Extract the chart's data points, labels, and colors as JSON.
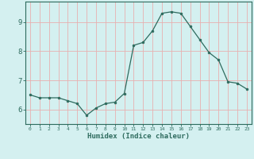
{
  "x": [
    0,
    1,
    2,
    3,
    4,
    5,
    6,
    7,
    8,
    9,
    10,
    11,
    12,
    13,
    14,
    15,
    16,
    17,
    18,
    19,
    20,
    21,
    22,
    23
  ],
  "y": [
    6.5,
    6.4,
    6.4,
    6.4,
    6.3,
    6.2,
    5.8,
    6.05,
    6.2,
    6.25,
    6.55,
    8.2,
    8.3,
    8.7,
    9.3,
    9.35,
    9.3,
    8.85,
    8.4,
    7.95,
    7.7,
    6.95,
    6.9,
    6.7
  ],
  "xlabel": "Humidex (Indice chaleur)",
  "line_color": "#2e6b5e",
  "marker": "o",
  "marker_size": 2,
  "bg_color": "#d4f0f0",
  "grid_color": "#e8b0b0",
  "ylim": [
    5.5,
    9.7
  ],
  "xlim": [
    -0.5,
    23.5
  ],
  "yticks": [
    6,
    7,
    8,
    9
  ],
  "xtick_labels": [
    "0",
    "1",
    "2",
    "3",
    "4",
    "5",
    "6",
    "7",
    "8",
    "9",
    "10",
    "11",
    "12",
    "13",
    "14",
    "15",
    "16",
    "17",
    "18",
    "19",
    "20",
    "21",
    "22",
    "23"
  ]
}
